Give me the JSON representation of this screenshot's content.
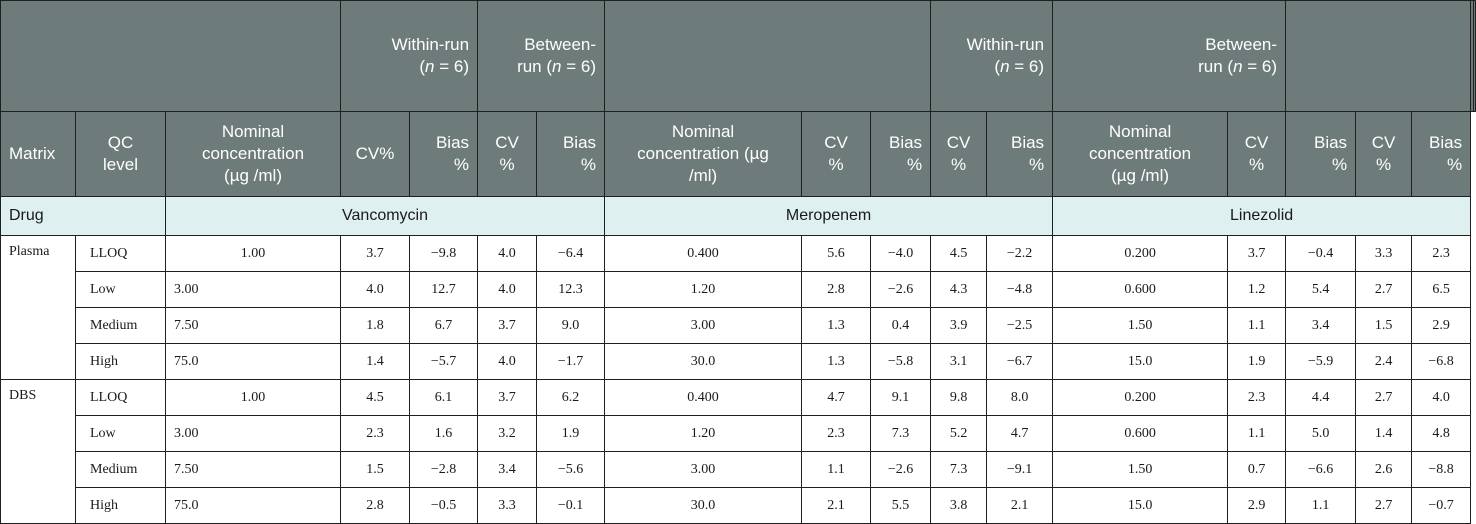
{
  "header": {
    "within_run": "Within-run",
    "between_run_a": "Between-",
    "between_run_b": "run",
    "n_eq": "= 6)",
    "n_open": "(",
    "n_var": "n",
    "matrix": "Matrix",
    "qc_level_a": "QC",
    "qc_level_b": "level",
    "nominal_1a": "Nominal",
    "nominal_1b": "concentration",
    "nominal_1c": "(µg /ml)",
    "nominal_2a": "Nominal",
    "nominal_2b": "concentration  (µg",
    "nominal_2c": "/ml)",
    "cv_pct": "CV%",
    "cv": "CV",
    "bias": "Bias",
    "pct": "%"
  },
  "drug_label": "Drug",
  "drugs": [
    "Vancomycin",
    "Meropenem",
    "Linezolid"
  ],
  "groups": [
    {
      "matrix": "Plasma",
      "rows": [
        {
          "qc": "LLOQ",
          "v": [
            "1.00",
            "3.7",
            "−9.8",
            "4.0",
            "−6.4"
          ],
          "m": [
            "0.400",
            "5.6",
            "−4.0",
            "4.5",
            "−2.2"
          ],
          "l": [
            "0.200",
            "3.7",
            "−0.4",
            "3.3",
            "2.3"
          ]
        },
        {
          "qc": "Low",
          "v": [
            "3.00",
            "4.0",
            "12.7",
            "4.0",
            "12.3"
          ],
          "m": [
            "1.20",
            "2.8",
            "−2.6",
            "4.3",
            "−4.8"
          ],
          "l": [
            "0.600",
            "1.2",
            "5.4",
            "2.7",
            "6.5"
          ]
        },
        {
          "qc": "Medium",
          "v": [
            "7.50",
            "1.8",
            "6.7",
            "3.7",
            "9.0"
          ],
          "m": [
            "3.00",
            "1.3",
            "0.4",
            "3.9",
            "−2.5"
          ],
          "l": [
            "1.50",
            "1.1",
            "3.4",
            "1.5",
            "2.9"
          ]
        },
        {
          "qc": "High",
          "v": [
            "75.0",
            "1.4",
            "−5.7",
            "4.0",
            "−1.7"
          ],
          "m": [
            "30.0",
            "1.3",
            "−5.8",
            "3.1",
            "−6.7"
          ],
          "l": [
            "15.0",
            "1.9",
            "−5.9",
            "2.4",
            "−6.8"
          ]
        }
      ]
    },
    {
      "matrix": "DBS",
      "rows": [
        {
          "qc": "LLOQ",
          "v": [
            "1.00",
            "4.5",
            "6.1",
            "3.7",
            "6.2"
          ],
          "m": [
            "0.400",
            "4.7",
            "9.1",
            "9.8",
            "8.0"
          ],
          "l": [
            "0.200",
            "2.3",
            "4.4",
            "2.7",
            "4.0"
          ]
        },
        {
          "qc": "Low",
          "v": [
            "3.00",
            "2.3",
            "1.6",
            "3.2",
            "1.9"
          ],
          "m": [
            "1.20",
            "2.3",
            "7.3",
            "5.2",
            "4.7"
          ],
          "l": [
            "0.600",
            "1.1",
            "5.0",
            "1.4",
            "4.8"
          ]
        },
        {
          "qc": "Medium",
          "v": [
            "7.50",
            "1.5",
            "−2.8",
            "3.4",
            "−5.6"
          ],
          "m": [
            "3.00",
            "1.1",
            "−2.6",
            "7.3",
            "−9.1"
          ],
          "l": [
            "1.50",
            "0.7",
            "−6.6",
            "2.6",
            "−8.8"
          ]
        },
        {
          "qc": "High",
          "v": [
            "75.0",
            "2.8",
            "−0.5",
            "3.3",
            "−0.1"
          ],
          "m": [
            "30.0",
            "2.1",
            "5.5",
            "3.8",
            "2.1"
          ],
          "l": [
            "15.0",
            "2.9",
            "1.1",
            "2.7",
            "−0.7"
          ]
        }
      ]
    }
  ]
}
